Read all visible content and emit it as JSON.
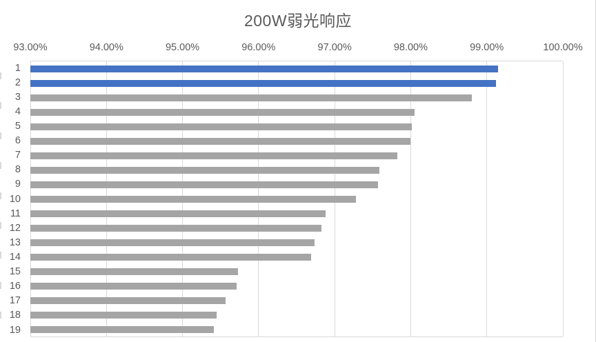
{
  "chart_data": {
    "type": "bar",
    "orientation": "horizontal",
    "title": "200W弱光响应",
    "categories": [
      "1",
      "2",
      "3",
      "4",
      "5",
      "6",
      "7",
      "8",
      "9",
      "10",
      "11",
      "12",
      "13",
      "14",
      "15",
      "16",
      "17",
      "18",
      "19"
    ],
    "values": [
      99.15,
      99.12,
      98.8,
      98.05,
      98.01,
      98.0,
      97.82,
      97.59,
      97.57,
      97.28,
      96.88,
      96.83,
      96.74,
      96.69,
      95.73,
      95.71,
      95.57,
      95.45,
      95.41
    ],
    "value_unit": "%",
    "xlim": [
      93,
      100
    ],
    "x_ticks": [
      "93.00%",
      "94.00%",
      "95.00%",
      "96.00%",
      "97.00%",
      "98.00%",
      "99.00%",
      "100.00%"
    ],
    "x_tick_step": 1,
    "grid": true,
    "legend": false,
    "axis_labels_position": "top",
    "highlight_indices": [
      0,
      1
    ],
    "colors": {
      "highlight_bar": "#4472c4",
      "default_bar": "#a5a5a5",
      "gridline": "#d9d9d9",
      "text": "#595959",
      "background": "#ffffff"
    }
  }
}
